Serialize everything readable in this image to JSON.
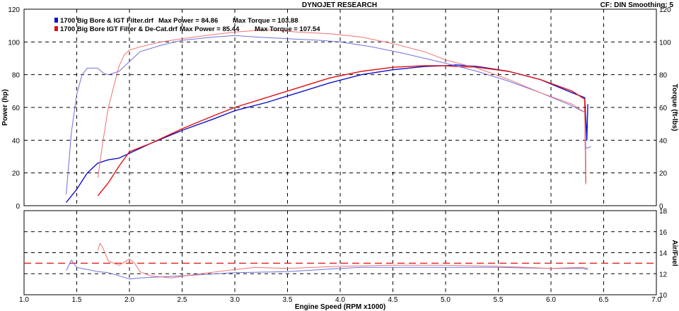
{
  "header": {
    "title": "DYNOJET RESEARCH",
    "settings": "CF: DIN  Smoothing: 5"
  },
  "legend": [
    {
      "run": "1700 Big Bore & IGT Filter.drf",
      "power": "Max Power = 84.86",
      "torque": "Max Torque = 103.88",
      "color": "#1010c8"
    },
    {
      "run": "1700 Big Bore IGT Filter & De-Cat.drf",
      "power": "Max Power = 85.44",
      "torque": "Max Torque = 107.54",
      "color": "#e01010"
    }
  ],
  "chart_data": [
    {
      "type": "line",
      "panel": "power-torque",
      "xlabel": "Engine Speed (RPM x1000)",
      "ylabel": "Power (hp)",
      "y2label": "Torque (ft-lbs)",
      "xlim": [
        1.0,
        7.0
      ],
      "ylim": [
        0,
        120
      ],
      "y2lim": [
        0,
        120
      ],
      "xticks": [
        "1.0",
        "1.5",
        "2.0",
        "2.5",
        "3.0",
        "3.5",
        "4.0",
        "4.5",
        "5.0",
        "5.5",
        "6.0",
        "6.5",
        "7.0"
      ],
      "yticks": [
        "0",
        "20",
        "40",
        "60",
        "80",
        "100",
        "120"
      ],
      "y2ticks": [
        "0",
        "20",
        "40",
        "60",
        "80",
        "100",
        "120"
      ],
      "grid": true,
      "series": [
        {
          "name": "1700 Big Bore & IGT Filter.drf",
          "metric": "Power",
          "color": "#1010c8",
          "x": [
            1.4,
            1.5,
            1.6,
            1.7,
            1.8,
            1.9,
            2.0,
            2.2,
            2.5,
            2.8,
            3.0,
            3.3,
            3.6,
            3.9,
            4.2,
            4.5,
            4.8,
            5.0,
            5.1,
            5.3,
            5.6,
            5.9,
            6.2,
            6.32,
            6.34,
            6.35
          ],
          "y": [
            2,
            10,
            20,
            26,
            28,
            29,
            32,
            38,
            46,
            53,
            58,
            63,
            69,
            75,
            80,
            83,
            85,
            85.5,
            86,
            85,
            82,
            77,
            69,
            66,
            40,
            62
          ]
        },
        {
          "name": "1700 Big Bore IGT Filter & De-Cat.drf",
          "metric": "Power",
          "color": "#e01010",
          "x": [
            1.7,
            1.8,
            1.9,
            2.0,
            2.2,
            2.5,
            2.8,
            3.0,
            3.3,
            3.6,
            3.9,
            4.2,
            4.5,
            4.8,
            5.0,
            5.1,
            5.3,
            5.6,
            5.9,
            6.2,
            6.32,
            6.33
          ],
          "y": [
            6,
            14,
            24,
            33,
            38,
            47,
            55,
            60,
            66,
            72,
            78,
            82,
            84.5,
            85.5,
            85.5,
            85,
            84.5,
            82,
            77,
            70,
            65,
            14
          ]
        },
        {
          "name": "1700 Big Bore & IGT Filter.drf",
          "metric": "Torque",
          "color": "#7070e0",
          "x": [
            1.4,
            1.45,
            1.5,
            1.55,
            1.6,
            1.7,
            1.75,
            1.8,
            1.9,
            2.0,
            2.1,
            2.3,
            2.5,
            2.8,
            3.0,
            3.2,
            3.5,
            3.8,
            4.0,
            4.3,
            4.6,
            5.0,
            5.3,
            5.6,
            5.9,
            6.2,
            6.32,
            6.33,
            6.38
          ],
          "y": [
            7,
            45,
            68,
            80,
            84,
            84,
            81,
            80,
            82,
            88,
            94,
            98,
            101,
            103,
            103.9,
            103,
            102,
            101,
            100,
            97,
            93,
            87,
            82,
            76,
            69,
            61,
            57,
            35,
            36
          ]
        },
        {
          "name": "1700 Big Bore IGT Filter & De-Cat.drf",
          "metric": "Torque",
          "color": "#f07070",
          "x": [
            1.7,
            1.75,
            1.8,
            1.9,
            1.95,
            2.0,
            2.1,
            2.3,
            2.5,
            2.8,
            3.0,
            3.3,
            3.6,
            3.9,
            4.2,
            4.5,
            4.8,
            5.0,
            5.3,
            5.6,
            5.9,
            6.2,
            6.32,
            6.33
          ],
          "y": [
            17,
            40,
            60,
            85,
            92,
            95,
            97,
            100,
            102,
            104.5,
            106,
            107.5,
            106,
            105,
            103,
            99,
            94,
            89,
            84,
            77,
            69,
            62,
            57,
            13
          ]
        }
      ]
    },
    {
      "type": "line",
      "panel": "air-fuel",
      "xlabel": "Engine Speed (RPM x1000)",
      "y2label": "Air/Fuel",
      "xlim": [
        1.0,
        7.0
      ],
      "y2lim": [
        10,
        18
      ],
      "y2ticks": [
        "10",
        "12",
        "14",
        "16",
        "18"
      ],
      "grid": true,
      "reference_line": 13,
      "series": [
        {
          "name": "1700 Big Bore & IGT Filter.drf",
          "metric": "Air/Fuel",
          "color": "#7070e0",
          "x": [
            1.4,
            1.45,
            1.5,
            1.6,
            1.7,
            1.8,
            1.9,
            2.0,
            2.1,
            2.3,
            2.5,
            3.0,
            3.5,
            4.0,
            4.2,
            4.5,
            5.0,
            5.5,
            6.0,
            6.3,
            6.35
          ],
          "y": [
            12.3,
            13.3,
            12.6,
            12.4,
            12.2,
            12.1,
            11.8,
            11.5,
            11.6,
            11.7,
            11.8,
            12.1,
            12.2,
            12.5,
            12.6,
            12.6,
            12.6,
            12.6,
            12.5,
            12.5,
            12.4
          ]
        },
        {
          "name": "1700 Big Bore IGT Filter & De-Cat.drf",
          "metric": "Air/Fuel",
          "color": "#f07070",
          "x": [
            1.7,
            1.72,
            1.75,
            1.8,
            1.9,
            2.0,
            2.05,
            2.1,
            2.2,
            2.4,
            2.6,
            3.0,
            3.2,
            3.5,
            4.0,
            4.5,
            5.0,
            5.5,
            6.0,
            6.3,
            6.35
          ],
          "y": [
            14.2,
            14.9,
            14.4,
            13.2,
            12.8,
            13.4,
            13.0,
            12.2,
            11.8,
            11.6,
            11.9,
            12.4,
            12.6,
            12.5,
            12.7,
            12.8,
            12.8,
            12.7,
            12.5,
            12.6,
            12.5
          ]
        }
      ]
    }
  ]
}
